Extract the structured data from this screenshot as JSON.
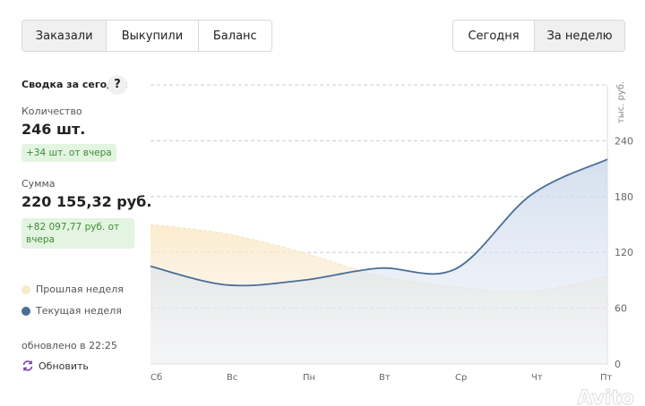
{
  "tabs_left": [
    {
      "label": "Заказали",
      "active": true
    },
    {
      "label": "Выкупили",
      "active": false
    },
    {
      "label": "Баланс",
      "active": false
    }
  ],
  "tabs_right": [
    {
      "label": "Сегодня",
      "active": false
    },
    {
      "label": "За неделю",
      "active": true
    }
  ],
  "summary": {
    "title": "Сводка за сегодня",
    "help": "?",
    "qty_label": "Количество",
    "qty_value": "246 шт.",
    "qty_delta": "+34 шт. от вчера",
    "sum_label": "Сумма",
    "sum_value": "220 155,32 руб.",
    "sum_delta": "+82 097,77 руб. от вчера",
    "updated": "обновлено в 22:25",
    "refresh": "Обновить"
  },
  "colors": {
    "prev": "#f8e9c8",
    "curr": "#4a6e96",
    "delta_bg": "#e3f4e1",
    "delta_text": "#3e8b35",
    "refresh_icon": "#7b3fb5"
  },
  "watermark": "Avito",
  "chart_data": {
    "type": "area",
    "categories": [
      "Сб",
      "Вс",
      "Пн",
      "Вт",
      "Ср",
      "Чт",
      "Пт"
    ],
    "series": [
      {
        "name": "Прошлая неделя",
        "values": [
          150,
          140,
          120,
          95,
          83,
          78,
          95
        ]
      },
      {
        "name": "Текущая неделя",
        "values": [
          105,
          85,
          90,
          103,
          102,
          182,
          220
        ]
      }
    ],
    "ylabel": "тыс. руб.",
    "yticks": [
      0,
      60,
      120,
      180,
      240
    ],
    "ylim": [
      0,
      300
    ],
    "grid": true,
    "legend": "left"
  }
}
